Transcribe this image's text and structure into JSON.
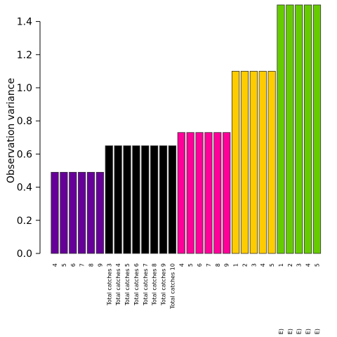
{
  "chart_data": {
    "type": "bar",
    "title": "",
    "xlabel": "",
    "ylabel": "Observation variance",
    "ylim": [
      0,
      1.5
    ],
    "yticks": [
      "0.0",
      "0.2",
      "0.4",
      "0.6",
      "0.8",
      "1.0",
      "1.2",
      "1.4"
    ],
    "grid": false,
    "legend": "none",
    "bars": [
      {
        "label": "4",
        "value": 0.49,
        "color": "#660099"
      },
      {
        "label": "5",
        "value": 0.49,
        "color": "#660099"
      },
      {
        "label": "6",
        "value": 0.49,
        "color": "#660099"
      },
      {
        "label": "7",
        "value": 0.49,
        "color": "#660099"
      },
      {
        "label": "8",
        "value": 0.49,
        "color": "#660099"
      },
      {
        "label": "9",
        "value": 0.49,
        "color": "#660099"
      },
      {
        "label": "Total catches 3",
        "value": 0.65,
        "color": "#000000"
      },
      {
        "label": "Total catches 4",
        "value": 0.65,
        "color": "#000000"
      },
      {
        "label": "Total catches 5",
        "value": 0.65,
        "color": "#000000"
      },
      {
        "label": "Total catches 6",
        "value": 0.65,
        "color": "#000000"
      },
      {
        "label": "Total catches 7",
        "value": 0.65,
        "color": "#000000"
      },
      {
        "label": "Total catches 8",
        "value": 0.65,
        "color": "#000000"
      },
      {
        "label": "Total catches 9",
        "value": 0.65,
        "color": "#000000"
      },
      {
        "label": "Total catches 10",
        "value": 0.65,
        "color": "#000000"
      },
      {
        "label": "4",
        "value": 0.73,
        "color": "#FF0099"
      },
      {
        "label": "5",
        "value": 0.73,
        "color": "#FF0099"
      },
      {
        "label": "6",
        "value": 0.73,
        "color": "#FF0099"
      },
      {
        "label": "7",
        "value": 0.73,
        "color": "#FF0099"
      },
      {
        "label": "8",
        "value": 0.73,
        "color": "#FF0099"
      },
      {
        "label": "9",
        "value": 0.73,
        "color": "#FF0099"
      },
      {
        "label": "1",
        "value": 1.1,
        "color": "#FFCC00"
      },
      {
        "label": "2",
        "value": 1.1,
        "color": "#FFCC00"
      },
      {
        "label": "3",
        "value": 1.1,
        "color": "#FFCC00"
      },
      {
        "label": "4",
        "value": 1.1,
        "color": "#FFCC00"
      },
      {
        "label": "5",
        "value": 1.1,
        "color": "#FFCC00"
      },
      {
        "label": "1",
        "tail": "E)",
        "value": 1.5,
        "color": "#66CC00"
      },
      {
        "label": "2",
        "tail": "E)",
        "value": 1.5,
        "color": "#66CC00"
      },
      {
        "label": "3",
        "tail": "E)",
        "value": 1.5,
        "color": "#66CC00"
      },
      {
        "label": "4",
        "tail": "E)",
        "value": 1.5,
        "color": "#66CC00"
      },
      {
        "label": "5",
        "tail": "E)",
        "value": 1.5,
        "color": "#66CC00"
      }
    ]
  }
}
